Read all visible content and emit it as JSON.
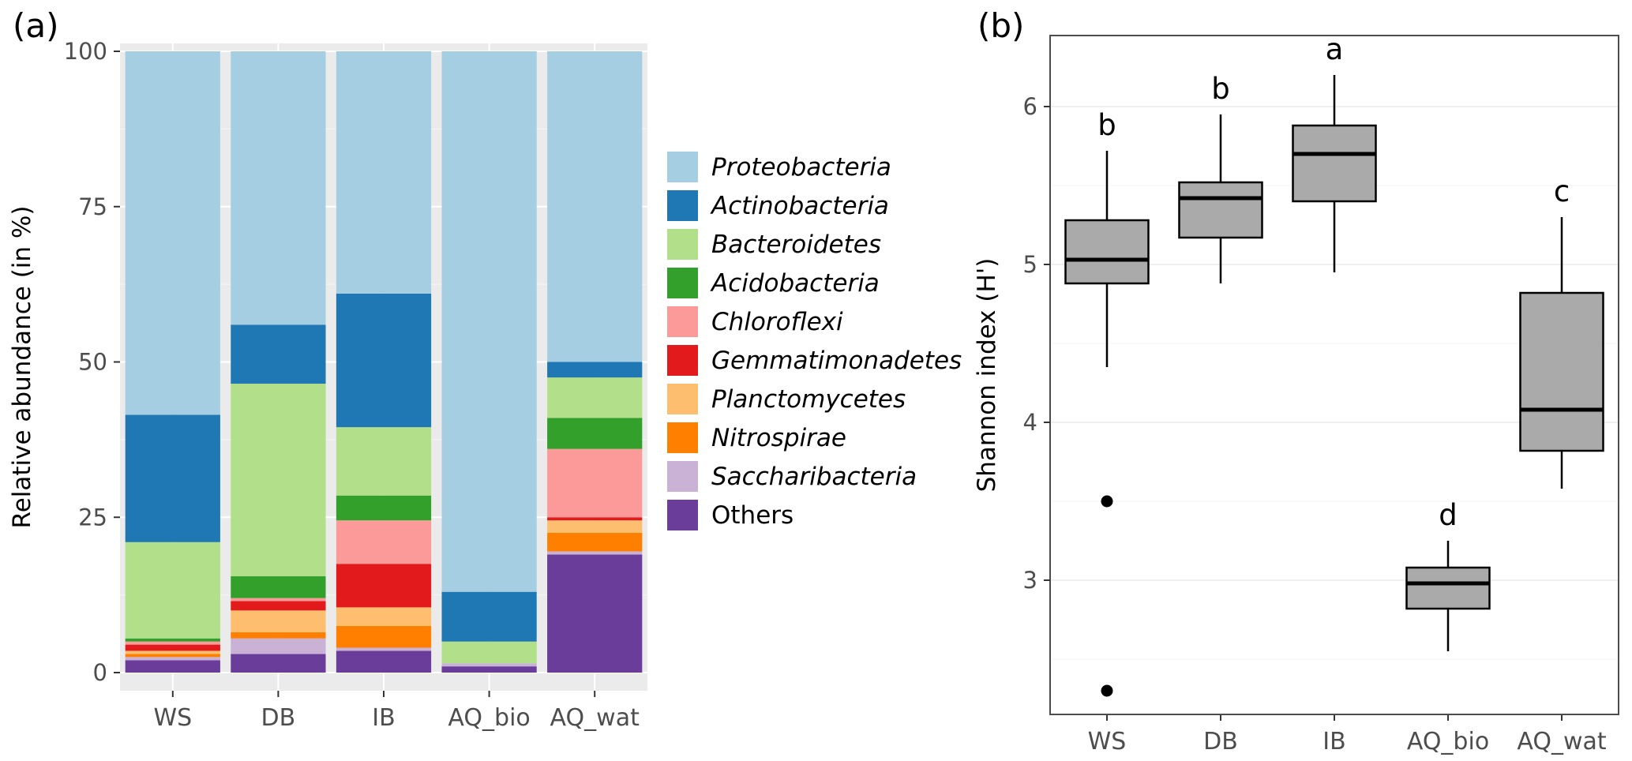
{
  "figure": {
    "panel_a_tag": "(a)",
    "panel_b_tag": "(b)"
  },
  "legend": {
    "items": [
      {
        "label": "Proteobacteria",
        "color": "#A6CEE3",
        "italic": true
      },
      {
        "label": "Actinobacteria",
        "color": "#1F78B4",
        "italic": true
      },
      {
        "label": "Bacteroidetes",
        "color": "#B2DF8A",
        "italic": true
      },
      {
        "label": "Acidobacteria",
        "color": "#33A02C",
        "italic": true
      },
      {
        "label": "Chloroflexi",
        "color": "#FB9A99",
        "italic": true
      },
      {
        "label": "Gemmatimonadetes",
        "color": "#E31A1C",
        "italic": true
      },
      {
        "label": "Planctomycetes",
        "color": "#FDBF6F",
        "italic": true
      },
      {
        "label": "Nitrospirae",
        "color": "#FF7F00",
        "italic": true
      },
      {
        "label": "Saccharibacteria",
        "color": "#CAB2D6",
        "italic": true
      },
      {
        "label": "Others",
        "color": "#6A3D9A",
        "italic": false
      }
    ]
  },
  "chart_data": [
    {
      "type": "bar",
      "stacked": true,
      "panel": "a",
      "title": "",
      "xlabel": "",
      "ylabel": "Relative abundance (in %)",
      "ylim": [
        0,
        100
      ],
      "yticks": [
        0,
        25,
        50,
        75,
        100
      ],
      "categories": [
        "WS",
        "DB",
        "IB",
        "AQ_bio",
        "AQ_wat"
      ],
      "stack_order": "bottom_to_top",
      "series": [
        {
          "name": "Others",
          "color": "#6A3D9A",
          "values": [
            2,
            3,
            3.5,
            1,
            19
          ]
        },
        {
          "name": "Saccharibacteria",
          "color": "#CAB2D6",
          "values": [
            0.5,
            2.5,
            0.5,
            0.5,
            0.5
          ]
        },
        {
          "name": "Nitrospirae",
          "color": "#FF7F00",
          "values": [
            0.5,
            1,
            3.5,
            0,
            3
          ]
        },
        {
          "name": "Planctomycetes",
          "color": "#FDBF6F",
          "values": [
            0.5,
            3.5,
            3,
            0,
            2
          ]
        },
        {
          "name": "Gemmatimonadetes",
          "color": "#E31A1C",
          "values": [
            1,
            1.5,
            7,
            0,
            0.5
          ]
        },
        {
          "name": "Chloroflexi",
          "color": "#FB9A99",
          "values": [
            0.5,
            0.5,
            7,
            0,
            11
          ]
        },
        {
          "name": "Acidobacteria",
          "color": "#33A02C",
          "values": [
            0.5,
            3.5,
            4,
            0,
            5
          ]
        },
        {
          "name": "Bacteroidetes",
          "color": "#B2DF8A",
          "values": [
            15.5,
            31,
            11,
            3.5,
            6.5
          ]
        },
        {
          "name": "Actinobacteria",
          "color": "#1F78B4",
          "values": [
            20.5,
            9.5,
            21.5,
            8,
            2.5
          ]
        },
        {
          "name": "Proteobacteria",
          "color": "#A6CEE3",
          "values": [
            58.5,
            44,
            39,
            87,
            50
          ]
        }
      ]
    },
    {
      "type": "boxplot",
      "panel": "b",
      "title": "",
      "xlabel": "",
      "ylabel": "Shannon index (H')",
      "ylim": [
        2.15,
        6.45
      ],
      "yticks": [
        3,
        4,
        5,
        6
      ],
      "box_fill": "#AAAAAA",
      "categories": [
        "WS",
        "DB",
        "IB",
        "AQ_bio",
        "AQ_wat"
      ],
      "boxes": [
        {
          "category": "WS",
          "median": 5.03,
          "q1": 4.88,
          "q3": 5.28,
          "whisker_low": 4.35,
          "whisker_high": 5.72,
          "outliers": [
            3.5,
            2.3
          ],
          "letter": "b"
        },
        {
          "category": "DB",
          "median": 5.42,
          "q1": 5.17,
          "q3": 5.52,
          "whisker_low": 4.88,
          "whisker_high": 5.95,
          "outliers": [],
          "letter": "b"
        },
        {
          "category": "IB",
          "median": 5.7,
          "q1": 5.4,
          "q3": 5.88,
          "whisker_low": 4.95,
          "whisker_high": 6.2,
          "outliers": [],
          "letter": "a"
        },
        {
          "category": "AQ_bio",
          "median": 2.98,
          "q1": 2.82,
          "q3": 3.08,
          "whisker_low": 2.55,
          "whisker_high": 3.25,
          "outliers": [],
          "letter": "d"
        },
        {
          "category": "AQ_wat",
          "median": 4.08,
          "q1": 3.82,
          "q3": 4.82,
          "whisker_low": 3.58,
          "whisker_high": 5.3,
          "outliers": [],
          "letter": "c"
        }
      ]
    }
  ]
}
